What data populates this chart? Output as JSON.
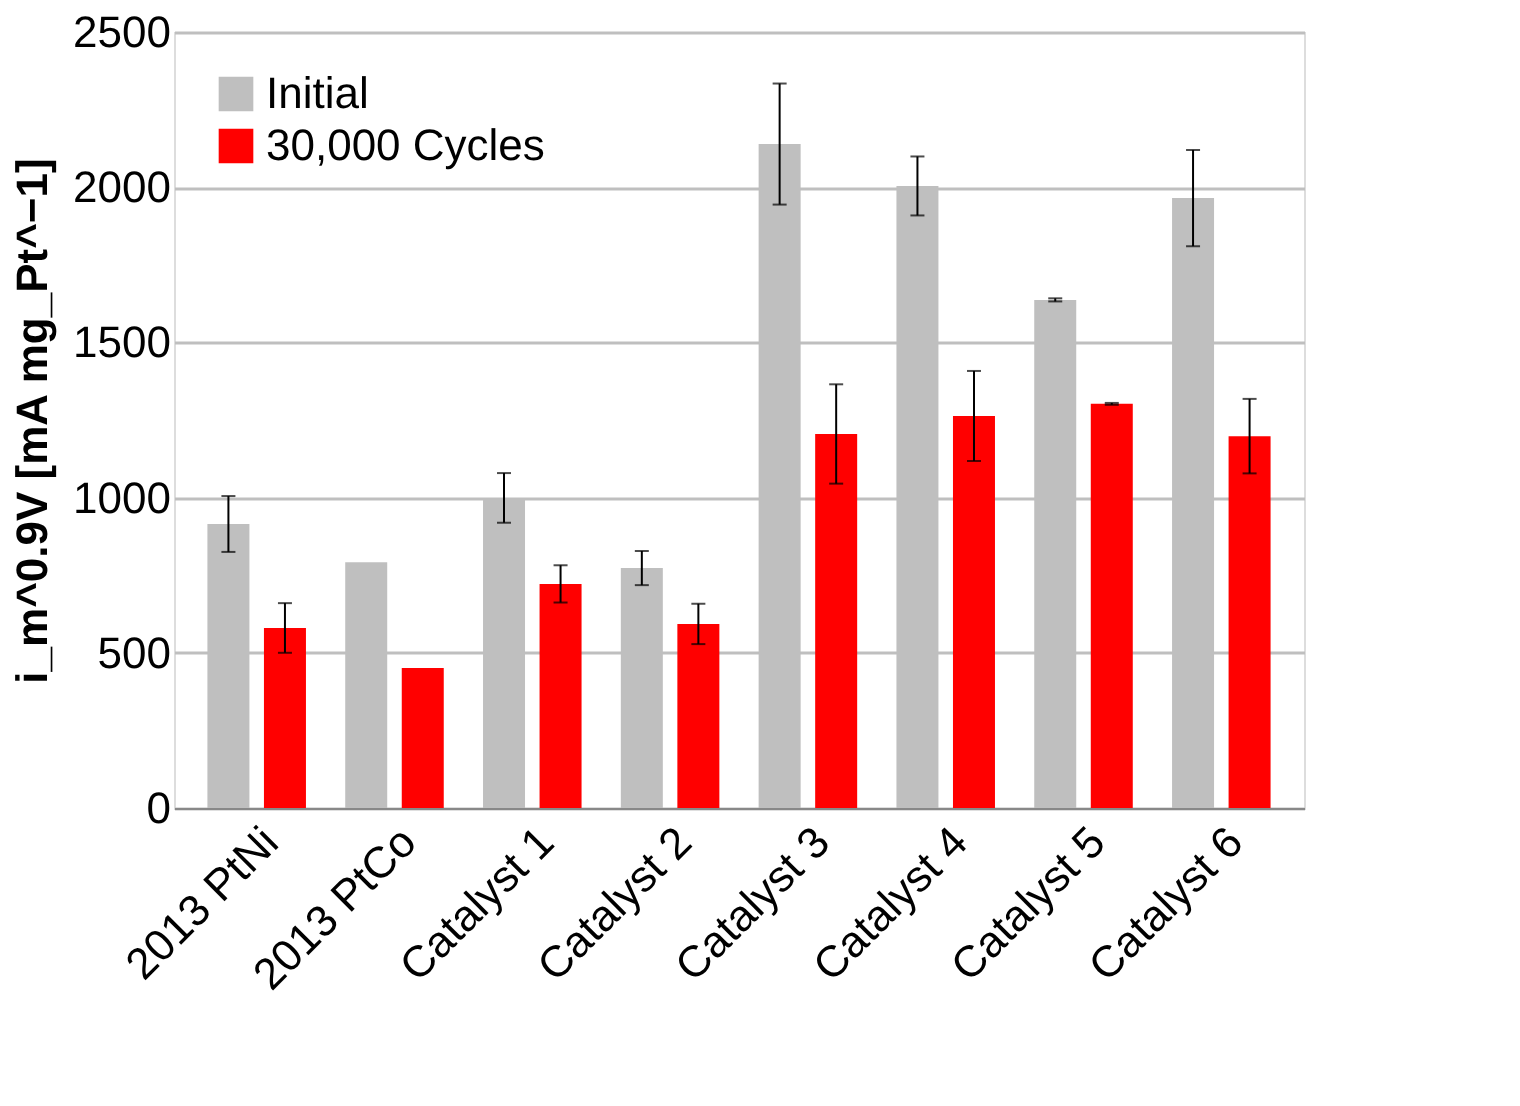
{
  "chart_data": {
    "type": "bar",
    "ylabel": "i_m^0.9V [mA mg_Pt^−1]",
    "categories": [
      "2013 PtNi",
      "2013 PtCo",
      "Catalyst 1",
      "Catalyst 2",
      "Catalyst 3",
      "Catalyst 4",
      "Catalyst 5",
      "Catalyst 6"
    ],
    "series": [
      {
        "name": "Initial",
        "color": "#bfbfbf",
        "values": [
          915,
          792,
          999,
          773,
          2139,
          2004,
          1637,
          1965
        ],
        "errors": [
          90,
          null,
          80,
          55,
          195,
          95,
          5,
          155
        ]
      },
      {
        "name": "30,000 Cycles",
        "color": "#ff0000",
        "values": [
          580,
          451,
          722,
          593,
          1205,
          1263,
          1302,
          1198
        ],
        "errors": [
          80,
          null,
          60,
          65,
          160,
          145,
          3,
          120
        ]
      }
    ],
    "ylim": [
      0,
      2500
    ],
    "yticks": [
      0,
      500,
      1000,
      1500,
      2000,
      2500
    ],
    "grid": "y",
    "legend": "top left"
  }
}
